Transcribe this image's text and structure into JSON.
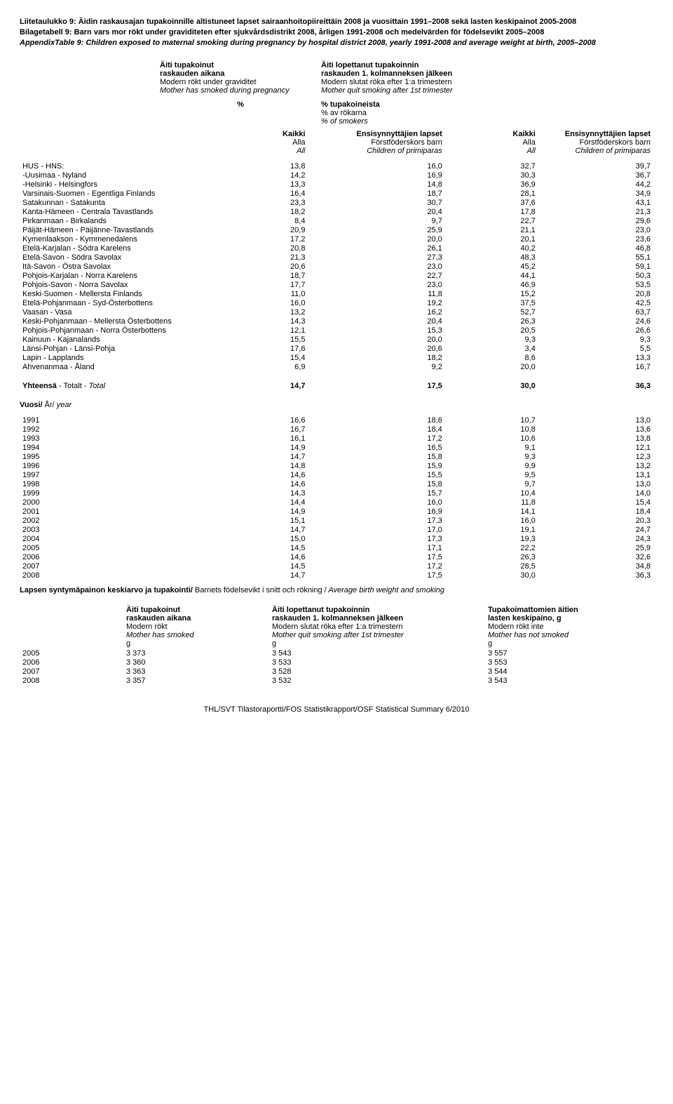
{
  "title": {
    "fi": "Liitetaulukko 9: Äidin raskausajan tupakoinnille altistuneet lapset sairaanhoitopiireittäin 2008 ja vuosittain 1991–2008 sekä lasten keskipainot 2005-2008",
    "sv": "Bilagetabell 9: Barn vars mor rökt under graviditeten efter sjukvårdsdistrikt 2008, årligen 1991-2008 och medelvärden för födelsevikt 2005–2008",
    "en": "AppendixTable 9: Children exposed to maternal smoking during pregnancy by hospital district 2008, yearly 1991-2008 and average weight at birth, 2005–2008"
  },
  "colhdr": {
    "left": {
      "fi1": "Äiti tupakoinut",
      "fi2": "raskauden aikana",
      "sv": "Modern rökt under graviditet",
      "en": "Mother has smoked during pregnancy",
      "pct": "%"
    },
    "right": {
      "fi1": "Äiti lopettanut tupakoinnin",
      "fi2": "raskauden 1. kolmanneksen jälkeen",
      "sv": "Modern slutat röka efter 1:a trimestern",
      "en": "Mother quit smoking after 1st trimester",
      "pct1": "% tupakoineista",
      "pct2": "% av rökarna",
      "pct3": "% of smokers"
    }
  },
  "subcols": {
    "kaikki": "Kaikki",
    "alla": "Alla",
    "all": "All",
    "ens_fi": "Ensisynnyttäjien lapset",
    "ens_sv": "Förstföderskors barn",
    "ens_en": "Children of primiparas"
  },
  "rows_region": [
    {
      "label": "HUS - HNS:",
      "v": [
        "13,8",
        "16,0",
        "32,7",
        "39,7"
      ]
    },
    {
      "label": "-Uusimaa - Nyland",
      "v": [
        "14,2",
        "16,9",
        "30,3",
        "36,7"
      ]
    },
    {
      "label": "-Helsinki - Helsingfors",
      "v": [
        "13,3",
        "14,8",
        "36,9",
        "44,2"
      ]
    },
    {
      "label": "Varsinais-Suomen - Egentliga Finlands",
      "v": [
        "16,4",
        "18,7",
        "28,1",
        "34,9"
      ]
    },
    {
      "label": "Satakunnan - Satakunta",
      "v": [
        "23,3",
        "30,7",
        "37,6",
        "43,1"
      ]
    },
    {
      "label": "Kanta-Hämeen - Centrala Tavastlands",
      "v": [
        "18,2",
        "20,4",
        "17,8",
        "21,3"
      ]
    },
    {
      "label": "Pirkanmaan - Birkalands",
      "v": [
        "8,4",
        "9,7",
        "22,7",
        "29,6"
      ]
    },
    {
      "label": "Päijät-Hämeen - Päijänne-Tavastlands",
      "v": [
        "20,9",
        "25,9",
        "21,1",
        "23,0"
      ]
    },
    {
      "label": "Kymenlaakson - Kymmenedalens",
      "v": [
        "17,2",
        "20,0",
        "20,1",
        "23,6"
      ]
    },
    {
      "label": "Etelä-Karjalan - Södra Karelens",
      "v": [
        "20,8",
        "26,1",
        "40,2",
        "46,8"
      ]
    },
    {
      "label": "Etelä-Savon - Södra Savolax",
      "v": [
        "21,3",
        "27,3",
        "48,3",
        "55,1"
      ]
    },
    {
      "label": "Itä-Savon - Östra Savolax",
      "v": [
        "20,6",
        "23,0",
        "45,2",
        "59,1"
      ]
    },
    {
      "label": "Pohjois-Karjalan - Norra Karelens",
      "v": [
        "18,7",
        "22,7",
        "44,1",
        "50,3"
      ]
    },
    {
      "label": "Pohjois-Savon - Norra Savolax",
      "v": [
        "17,7",
        "23,0",
        "46,9",
        "53,5"
      ]
    },
    {
      "label": "Keski-Suomen - Mellersta Finlands",
      "v": [
        "11,0",
        "11,8",
        "15,2",
        "20,8"
      ]
    },
    {
      "label": "Etelä-Pohjanmaan - Syd-Österbottens",
      "v": [
        "16,0",
        "19,2",
        "37,5",
        "42,5"
      ]
    },
    {
      "label": "Vaasan - Vasa",
      "v": [
        "13,2",
        "16,2",
        "52,7",
        "63,7"
      ]
    },
    {
      "label": "Keski-Pohjanmaan - Mellersta Österbottens",
      "v": [
        "14,3",
        "20,4",
        "26,3",
        "24,6"
      ]
    },
    {
      "label": "Pohjois-Pohjanmaan - Norra Österbottens",
      "v": [
        "12,1",
        "15,3",
        "20,5",
        "26,6"
      ]
    },
    {
      "label": "Kainuun - Kajanalands",
      "v": [
        "15,5",
        "20,0",
        "9,3",
        "9,3"
      ]
    },
    {
      "label": "Länsi-Pohjan - Länsi-Pohja",
      "v": [
        "17,6",
        "20,6",
        "3,4",
        "5,5"
      ]
    },
    {
      "label": "Lapin - Lapplands",
      "v": [
        "15,4",
        "18,2",
        "8,6",
        "13,3"
      ]
    },
    {
      "label": "Ahvenanmaa - Åland",
      "v": [
        "6,9",
        "9,2",
        "20,0",
        "16,7"
      ]
    }
  ],
  "total_row": {
    "label_fi": "Yhteensä",
    "label_sv": " - Totalt - ",
    "label_en": "Total",
    "v": [
      "14,7",
      "17,5",
      "30,0",
      "36,3"
    ]
  },
  "year_header": {
    "fi": "Vuosi/",
    "sv": " År/",
    "en": " year"
  },
  "rows_year": [
    {
      "label": "1991",
      "v": [
        "16,6",
        "18,6",
        "10,7",
        "13,0"
      ]
    },
    {
      "label": "1992",
      "v": [
        "16,7",
        "18,4",
        "10,8",
        "13,6"
      ]
    },
    {
      "label": "1993",
      "v": [
        "16,1",
        "17,2",
        "10,6",
        "13,8"
      ]
    },
    {
      "label": "1994",
      "v": [
        "14,9",
        "16,5",
        "9,1",
        "12,1"
      ]
    },
    {
      "label": "1995",
      "v": [
        "14,7",
        "15,8",
        "9,3",
        "12,3"
      ]
    },
    {
      "label": "1996",
      "v": [
        "14,8",
        "15,9",
        "9,9",
        "13,2"
      ]
    },
    {
      "label": "1997",
      "v": [
        "14,6",
        "15,5",
        "9,5",
        "13,1"
      ]
    },
    {
      "label": "1998",
      "v": [
        "14,6",
        "15,8",
        "9,7",
        "13,0"
      ]
    },
    {
      "label": "1999",
      "v": [
        "14,3",
        "15,7",
        "10,4",
        "14,0"
      ]
    },
    {
      "label": "2000",
      "v": [
        "14,4",
        "16,0",
        "11,8",
        "15,4"
      ]
    },
    {
      "label": "2001",
      "v": [
        "14,9",
        "16,9",
        "14,1",
        "18,4"
      ]
    },
    {
      "label": "2002",
      "v": [
        "15,1",
        "17,3",
        "16,0",
        "20,3"
      ]
    },
    {
      "label": "2003",
      "v": [
        "14,7",
        "17,0",
        "19,1",
        "24,7"
      ]
    },
    {
      "label": "2004",
      "v": [
        "15,0",
        "17,3",
        "19,3",
        "24,3"
      ]
    },
    {
      "label": "2005",
      "v": [
        "14,5",
        "17,1",
        "22,2",
        "25,9"
      ]
    },
    {
      "label": "2006",
      "v": [
        "14,6",
        "17,5",
        "26,3",
        "32,6"
      ]
    },
    {
      "label": "2007",
      "v": [
        "14,5",
        "17,2",
        "28,5",
        "34,8"
      ]
    },
    {
      "label": "2008",
      "v": [
        "14,7",
        "17,5",
        "30,0",
        "36,3"
      ]
    }
  ],
  "weight_header": {
    "fi": "Lapsen syntymäpainon keskiarvo ja tupakointi/",
    "sv": " Barnets födelsevikt i snitt och rökning /",
    "en": " Average birth weight and smoking"
  },
  "weight_cols": {
    "c1": {
      "fi1": "Äiti tupakoinut",
      "fi2": "raskauden aikana",
      "sv": "Modern rökt",
      "en": "Mother has smoked",
      "unit": "g"
    },
    "c2": {
      "fi1": "Äiti lopettanut tupakoinnin",
      "fi2": "raskauden 1. kolmanneksen jälkeen",
      "sv": "Modern slutat röka efter 1:a trimestern",
      "en": "Mother quit smoking after 1st trimester",
      "unit": "g"
    },
    "c3": {
      "fi1": "Tupakoimattomien äitien",
      "fi2": "lasten keskipaino, g",
      "sv": "Modern rökt inte",
      "en": "Mother has not smoked",
      "unit": "g"
    }
  },
  "weight_rows": [
    {
      "label": "2005",
      "v": [
        "3 373",
        "3 543",
        "3 557"
      ]
    },
    {
      "label": "2006",
      "v": [
        "3 360",
        "3 533",
        "3 553"
      ]
    },
    {
      "label": "2007",
      "v": [
        "3 363",
        "3 528",
        "3 544"
      ]
    },
    {
      "label": "2008",
      "v": [
        "3 357",
        "3 532",
        "3 543"
      ]
    }
  ],
  "footer": "THL/SVT Tilastoraportti/FOS Statistikrapport/OSF Statistical Summary 6/2010"
}
